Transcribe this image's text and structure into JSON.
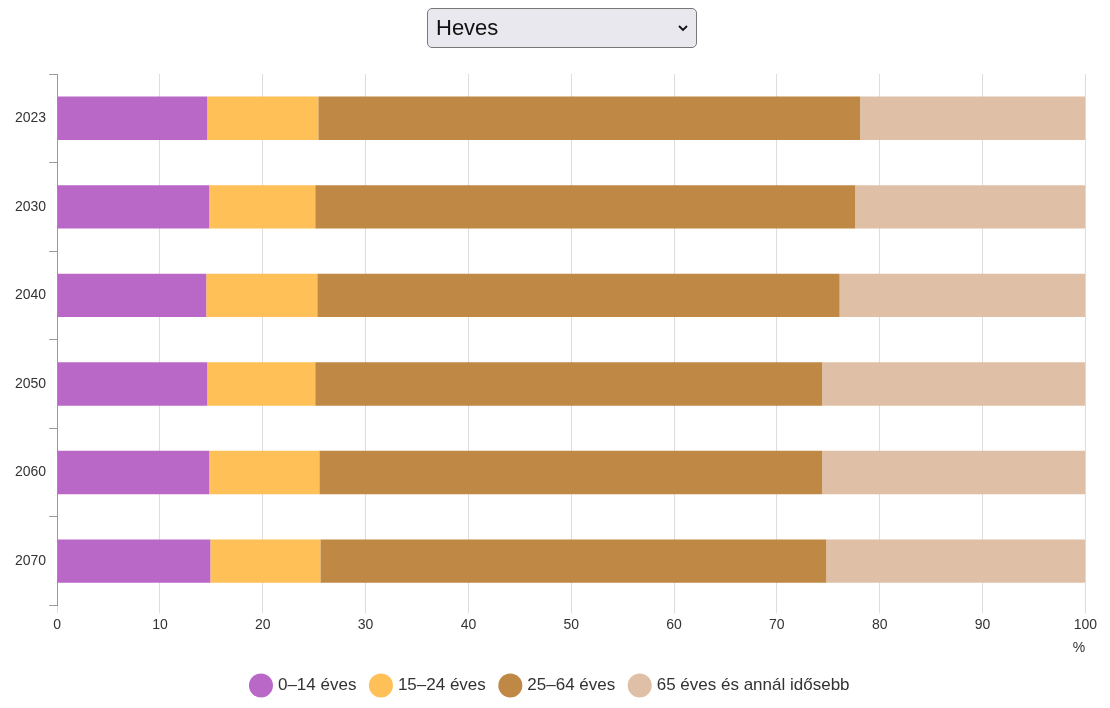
{
  "chart_data": {
    "type": "bar",
    "orientation": "horizontal",
    "stacked": true,
    "title": "Heves",
    "xlabel": "%",
    "categories": [
      "2023",
      "2030",
      "2040",
      "2050",
      "2060",
      "2070"
    ],
    "series": [
      {
        "name": "0–14 éves",
        "color": "#ba68c8",
        "values": [
          14.6,
          14.8,
          14.5,
          14.6,
          14.8,
          14.9
        ]
      },
      {
        "name": "15–24 éves",
        "color": "#ffc057",
        "values": [
          10.8,
          10.3,
          10.8,
          10.5,
          10.7,
          10.7
        ]
      },
      {
        "name": "25–64 éves",
        "color": "#bf8845",
        "values": [
          52.7,
          52.5,
          50.8,
          49.3,
          48.9,
          49.2
        ]
      },
      {
        "name": "65 éves és annál idősebb",
        "color": "#dfc0a6",
        "values": [
          21.9,
          22.4,
          23.9,
          25.6,
          25.6,
          25.2
        ]
      }
    ],
    "xlim": [
      0,
      100
    ],
    "xticks": [
      0,
      10,
      20,
      30,
      40,
      50,
      60,
      70,
      80,
      90,
      100
    ],
    "grid": "x",
    "legend": "bottom",
    "marker": "circle"
  }
}
